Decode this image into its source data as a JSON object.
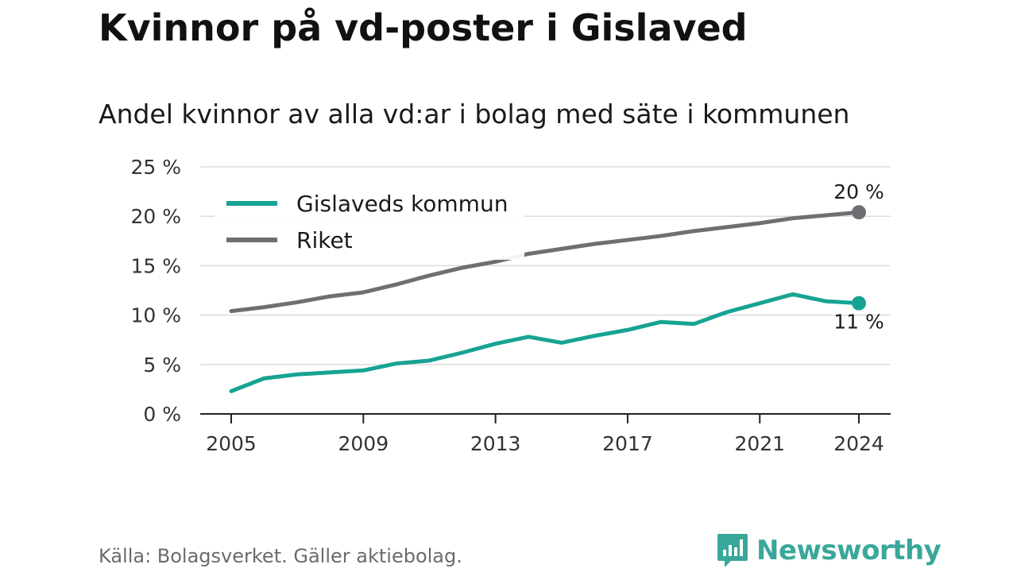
{
  "title": "Kvinnor på vd-poster i Gislaved",
  "subtitle": "Andel kvinnor av alla vd:ar i bolag med säte i kommunen",
  "source": "Källa: Bolagsverket. Gäller aktiebolag.",
  "brand": {
    "name": "Newsworthy",
    "icon": "newsworthy-logo-icon",
    "color": "#3aa79b"
  },
  "chart_data": {
    "type": "line",
    "x": [
      2005,
      2006,
      2007,
      2008,
      2009,
      2010,
      2011,
      2012,
      2013,
      2014,
      2015,
      2016,
      2017,
      2018,
      2019,
      2020,
      2021,
      2022,
      2023,
      2024
    ],
    "series": [
      {
        "name": "Gislaveds kommun",
        "color": "#17a394",
        "values": [
          2.3,
          3.6,
          4.0,
          4.2,
          4.4,
          5.1,
          5.4,
          6.2,
          7.1,
          7.8,
          7.2,
          7.9,
          8.5,
          9.3,
          9.1,
          10.3,
          11.2,
          12.1,
          11.4,
          11.2
        ],
        "end_label": "11 %"
      },
      {
        "name": "Riket",
        "color": "#6e6e73",
        "values": [
          10.4,
          10.8,
          11.3,
          11.9,
          12.3,
          13.1,
          14.0,
          14.8,
          15.4,
          16.2,
          16.7,
          17.2,
          17.6,
          18.0,
          18.5,
          18.9,
          19.3,
          19.8,
          20.1,
          20.4
        ],
        "end_label": "20 %"
      }
    ],
    "y_ticks": [
      {
        "value": 0,
        "label": "0 %"
      },
      {
        "value": 5,
        "label": "5 %"
      },
      {
        "value": 10,
        "label": "10 %"
      },
      {
        "value": 15,
        "label": "15 %"
      },
      {
        "value": 20,
        "label": "20 %"
      },
      {
        "value": 25,
        "label": "25 %"
      }
    ],
    "x_ticks": [
      {
        "value": 2005,
        "label": "2005"
      },
      {
        "value": 2009,
        "label": "2009"
      },
      {
        "value": 2013,
        "label": "2013"
      },
      {
        "value": 2017,
        "label": "2017"
      },
      {
        "value": 2021,
        "label": "2021"
      },
      {
        "value": 2024,
        "label": "2024"
      }
    ],
    "ylim": [
      0,
      25
    ],
    "xlim": [
      2005,
      2024
    ],
    "grid": "horizontal",
    "legend": "top-left"
  }
}
